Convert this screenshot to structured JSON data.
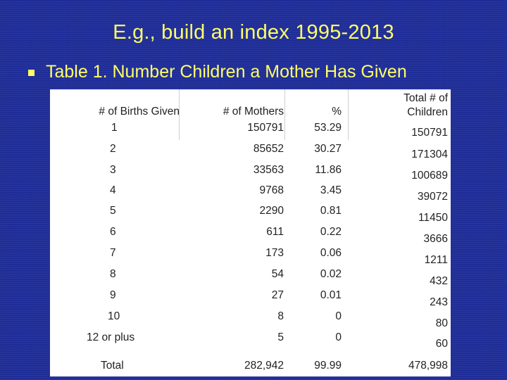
{
  "slide": {
    "title": "E.g., build an index 1995-2013",
    "subtitle": "Table 1. Number Children a Mother Has Given"
  },
  "table": {
    "headers": {
      "births": "# of Births Given",
      "mothers": "#  of Mothers",
      "percent": "%",
      "total_line1": "Total # of",
      "total_line2": "Children"
    },
    "rows": [
      {
        "births": "1",
        "mothers": "150791",
        "percent": "53.29",
        "total": "150791"
      },
      {
        "births": "2",
        "mothers": "85652",
        "percent": "30.27",
        "total": "171304"
      },
      {
        "births": "3",
        "mothers": "33563",
        "percent": "11.86",
        "total": "100689"
      },
      {
        "births": "4",
        "mothers": "9768",
        "percent": "3.45",
        "total": "39072"
      },
      {
        "births": "5",
        "mothers": "2290",
        "percent": "0.81",
        "total": "11450"
      },
      {
        "births": "6",
        "mothers": "611",
        "percent": "0.22",
        "total": "3666"
      },
      {
        "births": "7",
        "mothers": "173",
        "percent": "0.06",
        "total": "1211"
      },
      {
        "births": "8",
        "mothers": "54",
        "percent": "0.02",
        "total": "432"
      },
      {
        "births": "9",
        "mothers": "27",
        "percent": "0.01",
        "total": "243"
      },
      {
        "births": "10",
        "mothers": "8",
        "percent": "0",
        "total": "80"
      },
      {
        "births": "12 or plus",
        "mothers": "5",
        "percent": "0",
        "total": "60"
      }
    ],
    "total_row": {
      "label": "Total",
      "mothers": "282,942",
      "percent": "99.99",
      "total": "478,998"
    }
  }
}
